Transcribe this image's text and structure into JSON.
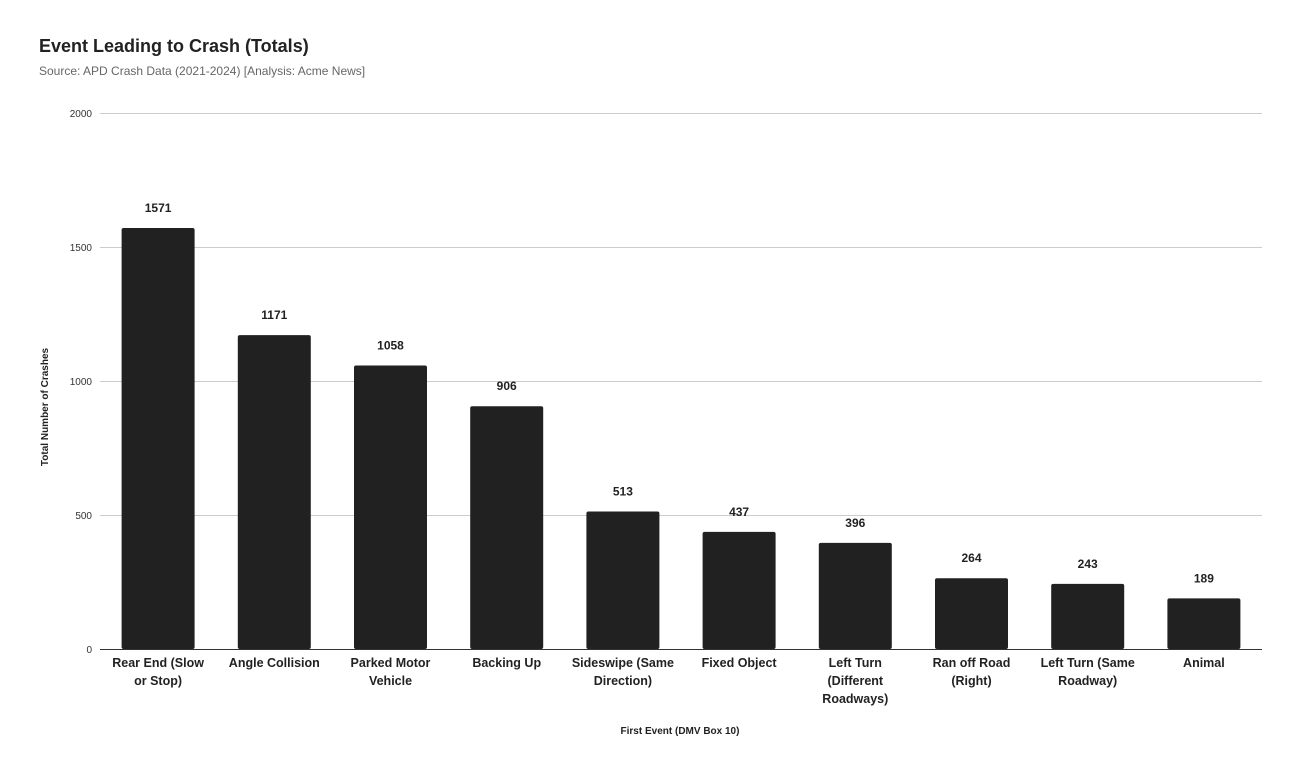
{
  "chart_data": {
    "type": "bar",
    "title": "Event Leading to Crash (Totals)",
    "subtitle": "Source: APD Crash Data (2021-2024) [Analysis: Acme News]",
    "xlabel": "First Event (DMV Box 10)",
    "ylabel": "Total Number of Crashes",
    "ylim": [
      0,
      2000
    ],
    "yticks": [
      0,
      500,
      1000,
      1500,
      2000
    ],
    "grid": true,
    "bar_color": "#212121",
    "grid_color": "#cccccc",
    "categories": [
      "Rear End (Slow or Stop)",
      "Angle Collision",
      "Parked Motor Vehicle",
      "Backing Up",
      "Sideswipe (Same Direction)",
      "Fixed Object",
      "Left Turn (Different Roadways)",
      "Ran off Road (Right)",
      "Left Turn (Same Roadway)",
      "Animal"
    ],
    "values": [
      1571,
      1171,
      1058,
      906,
      513,
      437,
      396,
      264,
      243,
      189
    ]
  }
}
